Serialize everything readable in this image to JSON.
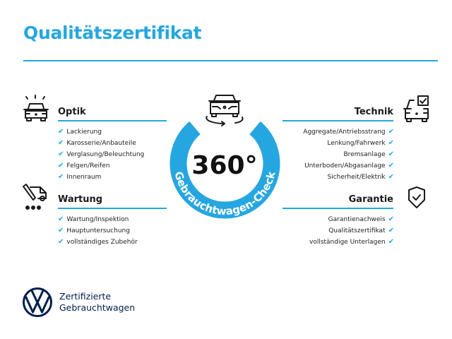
{
  "title": "Qualitätszertifikat",
  "accent_color": "#26a6e0",
  "center": {
    "number": "360°",
    "ring_text": "Gebrauchtwagen-Check",
    "icon": "car-rotate-icon"
  },
  "sections": {
    "optik": {
      "heading": "Optik",
      "icon": "car-lights-icon",
      "items": [
        "Lackierung",
        "Karosserie/Anbauteile",
        "Verglasung/Beleuchtung",
        "Felgen/Reifen",
        "Innenraum"
      ]
    },
    "wartung": {
      "heading": "Wartung",
      "icon": "service-tools-icon",
      "items": [
        "Wartung/Inspektion",
        "Hauptuntersuchung",
        "vollständiges Zubehör"
      ]
    },
    "technik": {
      "heading": "Technik",
      "icon": "car-checklist-icon",
      "items": [
        "Aggregate/Antriebsstrang",
        "Lenkung/Fahrwerk",
        "Bremsanlage",
        "Unterboden/Abgasanlage",
        "Sicherheit/Elektrik"
      ]
    },
    "garantie": {
      "heading": "Garantie",
      "icon": "shield-check-icon",
      "items": [
        "Garantienachweis",
        "Qualitätszertifikat",
        "vollständige Unterlagen"
      ]
    }
  },
  "check_glyph": "✔",
  "footer": {
    "line1": "Zertifizierte",
    "line2": "Gebrauchtwagen",
    "logo": "vw-logo"
  }
}
